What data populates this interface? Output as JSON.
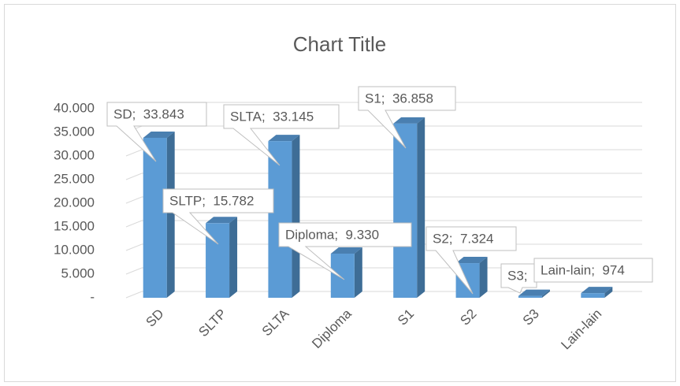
{
  "chart_data": {
    "type": "bar3d",
    "title": "Chart Title",
    "categories": [
      "SD",
      "SLTP",
      "SLTA",
      "Diploma",
      "S1",
      "S2",
      "S3",
      "Lain-lain"
    ],
    "values": [
      33843,
      15782,
      33145,
      9330,
      36858,
      7324,
      400,
      974
    ],
    "value_labels": [
      "SD;  33.843",
      "SLTP;  15.782",
      "SLTA;  33.145",
      "Diploma;  9.330",
      "S1;  36.858",
      "S2;  7.324",
      "S3;",
      "Lain-lain;  974"
    ],
    "color": "#5b9bd5",
    "ylim": [
      0,
      45000
    ],
    "yticks": [
      {
        "value": 0,
        "label": "-"
      },
      {
        "value": 5000,
        "label": "5.000"
      },
      {
        "value": 10000,
        "label": "10.000"
      },
      {
        "value": 15000,
        "label": "15.000"
      },
      {
        "value": 20000,
        "label": "20.000"
      },
      {
        "value": 25000,
        "label": "25.000"
      },
      {
        "value": 30000,
        "label": "30.000"
      },
      {
        "value": 35000,
        "label": "35.000"
      },
      {
        "value": 40000,
        "label": "40.000"
      }
    ],
    "grid": true
  }
}
